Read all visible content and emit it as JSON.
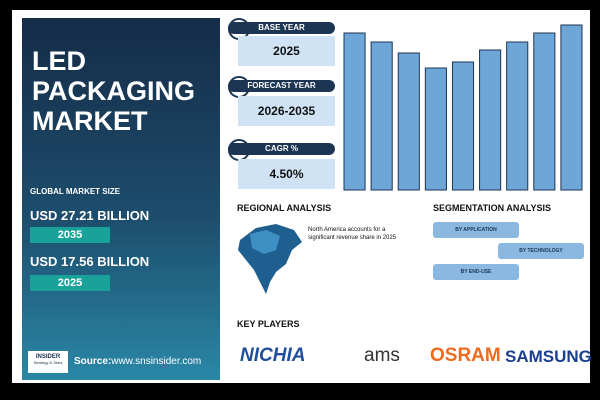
{
  "left_panel": {
    "title": [
      "LED",
      "PACKAGING",
      "MARKET"
    ],
    "market_size_label": "GLOBAL MARKET SIZE",
    "figures": [
      {
        "value": "USD 27.21 BILLION",
        "year": "2035"
      },
      {
        "value": "USD 17.56 BILLION",
        "year": "2025"
      }
    ],
    "logo": "INSIDER",
    "logo_tagline": "Strategy & Stats",
    "source_label": "Source:",
    "source": "www.snsinsider.com"
  },
  "cards": [
    {
      "label": "BASE YEAR",
      "value": "2025"
    },
    {
      "label": "FORECAST YEAR",
      "value": "2026-2035"
    },
    {
      "label": "CAGR %",
      "value": "4.50%"
    }
  ],
  "bar_chart": {
    "type": "bar",
    "values": [
      157,
      148,
      137,
      122,
      128,
      140,
      148,
      157,
      165
    ],
    "ylim": [
      0,
      170
    ],
    "color": "#6fa6d8"
  },
  "regional": {
    "heading": "REGIONAL ANALYSIS",
    "note": "North America accounts for a significant revenue share in 2025"
  },
  "segmentation": {
    "heading": "SEGMENTATION ANALYSIS",
    "items": [
      "BY APPLICATION",
      "BY TECHNOLOGY",
      "BY END-USE"
    ]
  },
  "key_players": {
    "heading": "KEY PLAYERS",
    "names": [
      "NICHIA",
      "ams",
      "OSRAM",
      "SAMSUNG"
    ]
  }
}
